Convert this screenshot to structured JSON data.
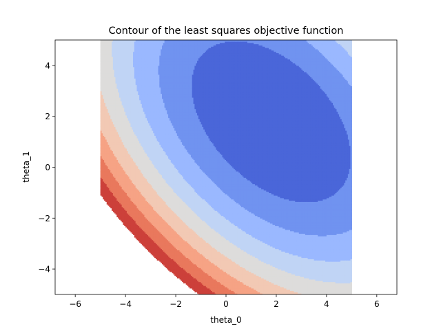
{
  "chart_data": {
    "type": "contour",
    "title": "Contour of the least squares objective function",
    "xlabel": "theta_0",
    "ylabel": "theta_1",
    "xlim": [
      -6.8,
      6.8
    ],
    "ylim": [
      -5.0,
      5.0
    ],
    "x_ticks": [
      -6,
      -4,
      -2,
      0,
      2,
      4,
      6
    ],
    "y_ticks": [
      -4,
      -2,
      0,
      2,
      4
    ],
    "x_tick_labels": [
      "−6",
      "−4",
      "−2",
      "0",
      "2",
      "4",
      "6"
    ],
    "y_tick_labels": [
      "−4",
      "−2",
      "0",
      "2",
      "4"
    ],
    "domain": {
      "theta_0": [
        -5,
        5
      ],
      "theta_1": [
        -5,
        5
      ]
    },
    "colormap": "coolwarm",
    "objective": {
      "a": 1.0,
      "b": 1.0,
      "c": 0.45,
      "center": [
        1.8,
        1.8
      ]
    },
    "levels": [
      0,
      8,
      16,
      24,
      32,
      40,
      48,
      56,
      64,
      72,
      80,
      88
    ],
    "level_colors": [
      "#4a66d9",
      "#7093f0",
      "#9ab8ff",
      "#c0d4f5",
      "#dddcdb",
      "#f2c9b4",
      "#f6a385",
      "#e9785d",
      "#cc403a"
    ],
    "grid": false
  }
}
